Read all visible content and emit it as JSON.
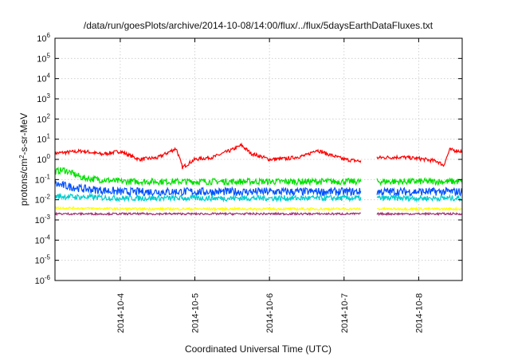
{
  "chart_data": {
    "type": "line",
    "title": "/data/run/goesPlots/archive/2014-10-08/14:00/flux/../flux/5daysEarthDataFluxes.txt",
    "xlabel": "Coordinated Universal Time (UTC)",
    "ylabel_base": "protons/cm",
    "ylabel_sup": "2",
    "ylabel_rest": "-s-sr-MeV",
    "x_type": "time",
    "xlim": [
      "2014-10-03 03:00",
      "2014-10-08 14:00"
    ],
    "x_ticks": [
      "2014-10-4",
      "2014-10-5",
      "2014-10-6",
      "2014-10-7",
      "2014-10-8"
    ],
    "y_scale": "log",
    "ylim": [
      1e-06,
      1000000.0
    ],
    "y_ticks": [
      {
        "base": "10",
        "exp": "-6"
      },
      {
        "base": "10",
        "exp": "-5"
      },
      {
        "base": "10",
        "exp": "-4"
      },
      {
        "base": "10",
        "exp": "-3"
      },
      {
        "base": "10",
        "exp": "-2"
      },
      {
        "base": "10",
        "exp": "-1"
      },
      {
        "base": "10",
        "exp": "0"
      },
      {
        "base": "10",
        "exp": "1"
      },
      {
        "base": "10",
        "exp": "2"
      },
      {
        "base": "10",
        "exp": "3"
      },
      {
        "base": "10",
        "exp": "4"
      },
      {
        "base": "10",
        "exp": "5"
      },
      {
        "base": "10",
        "exp": "6"
      }
    ],
    "grid": true,
    "legend": "none",
    "data_gap": [
      "2014-10-07 05:30",
      "2014-10-07 10:30"
    ],
    "series": [
      {
        "color": "#ff0000",
        "x": [
          "2014-10-03 03:00",
          "2014-10-03 12:00",
          "2014-10-03 18:00",
          "2014-10-04 00:00",
          "2014-10-04 06:00",
          "2014-10-04 12:00",
          "2014-10-04 18:00",
          "2014-10-04 20:00",
          "2014-10-05 00:00",
          "2014-10-05 06:00",
          "2014-10-05 12:00",
          "2014-10-05 15:00",
          "2014-10-05 18:00",
          "2014-10-06 00:00",
          "2014-10-06 06:00",
          "2014-10-06 12:00",
          "2014-10-06 15:00",
          "2014-10-06 18:00",
          "2014-10-07 00:00",
          "2014-10-07 05:30",
          "2014-10-07 10:30",
          "2014-10-07 18:00",
          "2014-10-08 00:00",
          "2014-10-08 06:00",
          "2014-10-08 08:00",
          "2014-10-08 10:00",
          "2014-10-08 14:00"
        ],
        "y": [
          2,
          2.6,
          1.8,
          2.5,
          1,
          1.2,
          3.5,
          0.4,
          1,
          1.3,
          3,
          5,
          2,
          1,
          1.1,
          1.6,
          3,
          2,
          1,
          0.8,
          1.2,
          1.3,
          1.1,
          0.8,
          0.5,
          3,
          2.5
        ]
      },
      {
        "color": "#00e000",
        "x": [
          "2014-10-03 03:00",
          "2014-10-03 06:00",
          "2014-10-03 12:00",
          "2014-10-04 00:00",
          "2014-10-05 00:00",
          "2014-10-06 00:00",
          "2014-10-07 00:00",
          "2014-10-07 05:30",
          "2014-10-07 10:30",
          "2014-10-08 00:00",
          "2014-10-08 14:00"
        ],
        "y": [
          0.25,
          0.3,
          0.12,
          0.08,
          0.08,
          0.08,
          0.08,
          0.08,
          0.08,
          0.08,
          0.08
        ]
      },
      {
        "color": "#0050ff",
        "x": [
          "2014-10-03 03:00",
          "2014-10-03 06:00",
          "2014-10-03 12:00",
          "2014-10-04 00:00",
          "2014-10-05 00:00",
          "2014-10-06 00:00",
          "2014-10-07 00:00",
          "2014-10-07 05:30",
          "2014-10-07 10:30",
          "2014-10-08 00:00",
          "2014-10-08 14:00"
        ],
        "y": [
          0.06,
          0.05,
          0.035,
          0.025,
          0.025,
          0.025,
          0.025,
          0.025,
          0.025,
          0.025,
          0.025
        ]
      },
      {
        "color": "#00cccc",
        "x": [
          "2014-10-03 03:00",
          "2014-10-04 00:00",
          "2014-10-05 00:00",
          "2014-10-06 00:00",
          "2014-10-07 00:00",
          "2014-10-07 05:30",
          "2014-10-07 10:30",
          "2014-10-08 00:00",
          "2014-10-08 14:00"
        ],
        "y": [
          0.015,
          0.012,
          0.012,
          0.012,
          0.012,
          0.012,
          0.012,
          0.012,
          0.012
        ]
      },
      {
        "color": "#ffff00",
        "x": [
          "2014-10-03 03:00",
          "2014-10-04 00:00",
          "2014-10-05 00:00",
          "2014-10-06 00:00",
          "2014-10-07 00:00",
          "2014-10-07 05:30",
          "2014-10-07 10:30",
          "2014-10-08 00:00",
          "2014-10-08 14:00"
        ],
        "y": [
          0.004,
          0.0035,
          0.0035,
          0.0035,
          0.0035,
          0.0035,
          0.0035,
          0.0035,
          0.0035
        ]
      },
      {
        "color": "#a03070",
        "x": [
          "2014-10-03 03:00",
          "2014-10-04 00:00",
          "2014-10-05 00:00",
          "2014-10-06 00:00",
          "2014-10-07 00:00",
          "2014-10-07 05:30",
          "2014-10-07 10:30",
          "2014-10-08 00:00",
          "2014-10-08 14:00"
        ],
        "y": [
          0.002,
          0.002,
          0.002,
          0.002,
          0.002,
          0.002,
          0.002,
          0.002,
          0.002
        ]
      }
    ]
  }
}
